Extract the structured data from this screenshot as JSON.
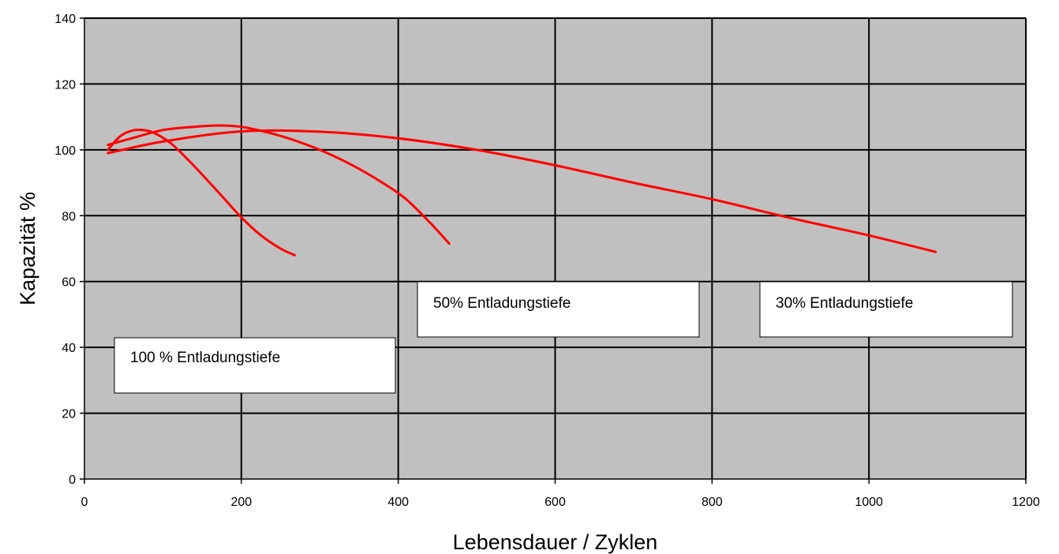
{
  "chart_data": {
    "type": "line",
    "title": "",
    "xlabel": "Lebensdauer / Zyklen",
    "ylabel": "Kapazität %",
    "xlim": [
      0,
      1200
    ],
    "ylim": [
      0,
      140
    ],
    "xticks": [
      0,
      200,
      400,
      600,
      800,
      1000,
      1200
    ],
    "yticks": [
      0,
      20,
      40,
      60,
      80,
      100,
      120,
      140
    ],
    "xtick_labels": [
      "0",
      "200",
      "400",
      "600",
      "800",
      "1000",
      "1200"
    ],
    "ytick_labels": [
      "0",
      "20",
      "40",
      "60",
      "80",
      "100",
      "120",
      "140"
    ],
    "grid": true,
    "plot_background": "#c0c0c0",
    "line_color": "#ff0000",
    "series": [
      {
        "x": [
          30,
          45,
          60,
          75,
          90,
          110,
          130,
          150,
          175,
          200,
          225,
          250,
          268
        ],
        "y": [
          100,
          104,
          105.8,
          106,
          105,
          102,
          97.5,
          92.5,
          86,
          79.5,
          74,
          70,
          68
        ]
      },
      {
        "x": [
          30,
          60,
          100,
          140,
          170,
          200,
          230,
          260,
          300,
          340,
          380,
          410,
          440,
          465
        ],
        "y": [
          101.5,
          103.5,
          106,
          107,
          107.4,
          107,
          105.5,
          103.5,
          100,
          95.5,
          90,
          85,
          78,
          71.5
        ]
      },
      {
        "x": [
          30,
          100,
          200,
          300,
          400,
          500,
          600,
          700,
          800,
          900,
          1000,
          1085
        ],
        "y": [
          99,
          102.5,
          105.6,
          105.5,
          103.5,
          100,
          95.3,
          90,
          85,
          79.3,
          74,
          69
        ]
      }
    ],
    "annotations": [
      {
        "text": "100 % Entladungstiefe"
      },
      {
        "text": "50% Entladungstiefe"
      },
      {
        "text": "30% Entladungstiefe"
      }
    ]
  }
}
